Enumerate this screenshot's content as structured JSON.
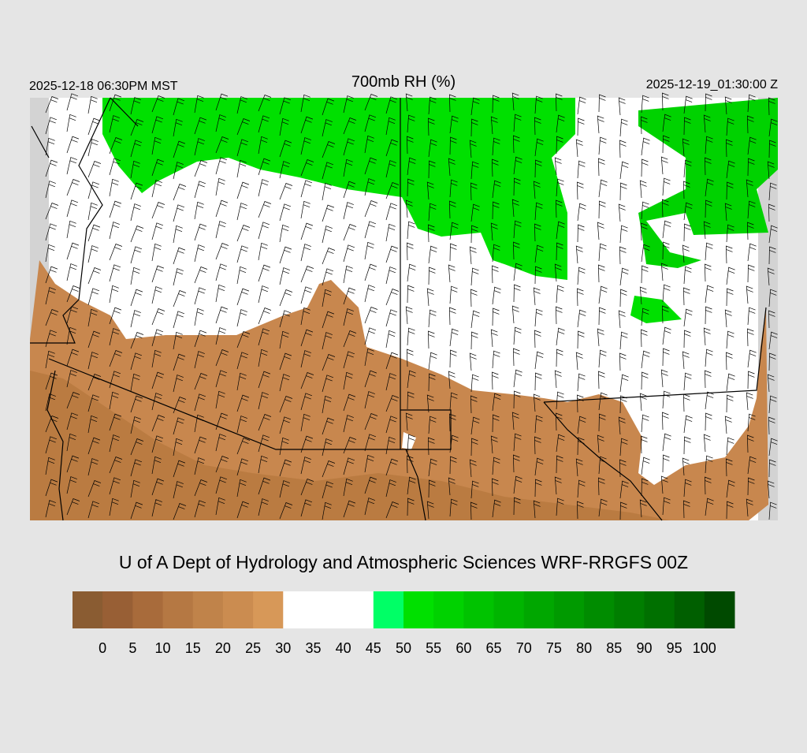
{
  "header": {
    "valid_local": "2025-12-18 06:30PM MST",
    "title": "700mb RH (%)",
    "valid_utc": "2025-12-19_01:30:00 Z"
  },
  "credit": "U of A Dept of Hydrology and Atmospheric Sciences WRF-RRGFS 00Z",
  "colorbar": {
    "levels": [
      0,
      5,
      10,
      15,
      20,
      25,
      30,
      35,
      40,
      45,
      50,
      55,
      60,
      65,
      70,
      75,
      80,
      85,
      90,
      95,
      100
    ],
    "colors": [
      "#8a5c32",
      "#985f35",
      "#a86b3b",
      "#b57843",
      "#c0834a",
      "#cb8c50",
      "#d79858",
      "#ffffff",
      "#ffffff",
      "#ffffff",
      "#00ff66",
      "#00e000",
      "#00d200",
      "#00c300",
      "#00b500",
      "#00a700",
      "#009a00",
      "#008c00",
      "#007e00",
      "#007000",
      "#005f00",
      "#004a00"
    ]
  }
}
